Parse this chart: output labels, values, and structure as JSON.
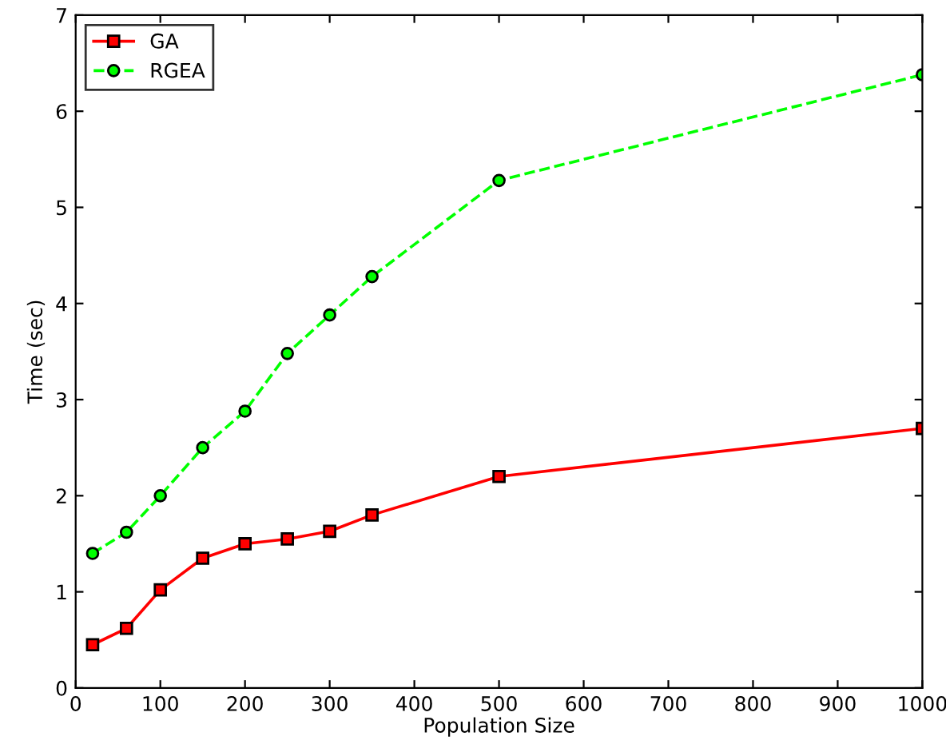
{
  "chart_data": {
    "type": "line",
    "xlabel": "Population Size",
    "ylabel": "Time (sec)",
    "x": [
      20,
      60,
      100,
      150,
      200,
      250,
      300,
      350,
      500,
      1000
    ],
    "series": [
      {
        "name": "GA",
        "color": "#ff0000",
        "marker": "square",
        "line_style": "solid",
        "values": [
          0.45,
          0.62,
          1.02,
          1.35,
          1.5,
          1.55,
          1.63,
          1.8,
          2.2,
          2.7
        ]
      },
      {
        "name": "RGEA",
        "color": "#00ff00",
        "marker": "circle",
        "line_style": "dashed",
        "values": [
          1.4,
          1.62,
          2.0,
          2.5,
          2.88,
          3.48,
          3.88,
          4.28,
          5.28,
          6.38
        ]
      }
    ],
    "xlim": [
      0,
      1000
    ],
    "ylim": [
      0,
      7
    ],
    "xticks": [
      0,
      100,
      200,
      300,
      400,
      500,
      600,
      700,
      800,
      900,
      1000
    ],
    "yticks": [
      0,
      1,
      2,
      3,
      4,
      5,
      6,
      7
    ],
    "grid": false,
    "legend": "top left"
  }
}
